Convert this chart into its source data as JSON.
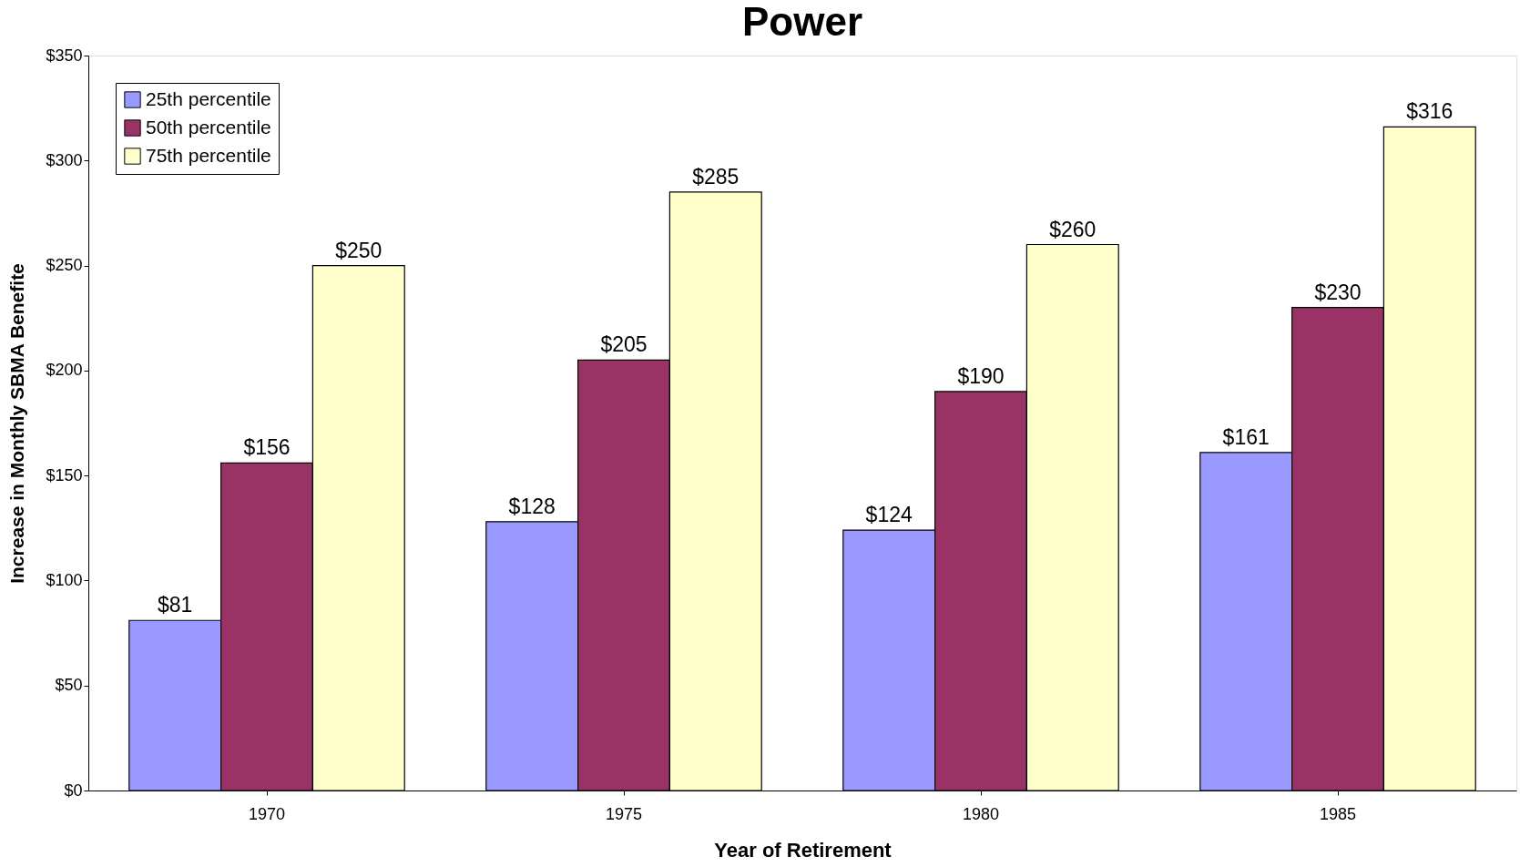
{
  "chart_data": {
    "type": "bar",
    "title": "Power",
    "xlabel": "Year of Retirement",
    "ylabel": "Increase in Monthly  SBMA Benefite",
    "categories": [
      "1970",
      "1975",
      "1980",
      "1985"
    ],
    "series": [
      {
        "name": "25th percentile",
        "color": "#9999ff",
        "values": [
          81,
          128,
          124,
          161
        ],
        "value_labels": [
          "$81",
          "$128",
          "$124",
          "$161"
        ]
      },
      {
        "name": "50th percentile",
        "color": "#993366",
        "values": [
          156,
          205,
          190,
          230
        ],
        "value_labels": [
          "$156",
          "$205",
          "$190",
          "$230"
        ]
      },
      {
        "name": "75th percentile",
        "color": "#ffffcc",
        "values": [
          250,
          285,
          260,
          316
        ],
        "value_labels": [
          "$250",
          "$285",
          "$260",
          "$316"
        ]
      }
    ],
    "ylim": [
      0,
      350
    ],
    "yticks": [
      {
        "value": 0,
        "label": "$0"
      },
      {
        "value": 50,
        "label": "$50"
      },
      {
        "value": 100,
        "label": "$100"
      },
      {
        "value": 150,
        "label": "$150"
      },
      {
        "value": 200,
        "label": "$200"
      },
      {
        "value": 250,
        "label": "$250"
      },
      {
        "value": 300,
        "label": "$300"
      },
      {
        "value": 350,
        "label": "$350"
      }
    ],
    "grid": false,
    "legend": "top left"
  }
}
